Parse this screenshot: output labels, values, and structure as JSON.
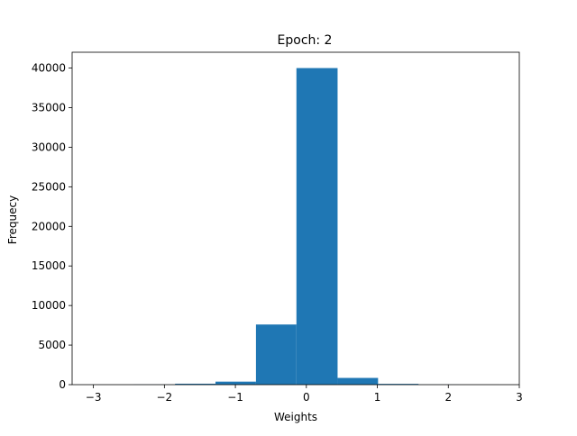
{
  "chart_data": {
    "type": "bar",
    "title": "Epoch: 2",
    "xlabel": "Weights",
    "ylabel": "Frequecy",
    "bar_color": "#1f77b4",
    "xlim": [
      -3.3,
      3.0
    ],
    "ylim": [
      0,
      42000
    ],
    "xticks": [
      {
        "value": -3,
        "label": "−3"
      },
      {
        "value": -2,
        "label": "−2"
      },
      {
        "value": -1,
        "label": "−1"
      },
      {
        "value": 0,
        "label": "0"
      },
      {
        "value": 1,
        "label": "1"
      },
      {
        "value": 2,
        "label": "2"
      },
      {
        "value": 3,
        "label": "3"
      }
    ],
    "yticks": [
      {
        "value": 0,
        "label": "0"
      },
      {
        "value": 5000,
        "label": "5000"
      },
      {
        "value": 10000,
        "label": "10000"
      },
      {
        "value": 15000,
        "label": "15000"
      },
      {
        "value": 20000,
        "label": "20000"
      },
      {
        "value": 25000,
        "label": "25000"
      },
      {
        "value": 30000,
        "label": "30000"
      },
      {
        "value": 35000,
        "label": "35000"
      },
      {
        "value": 40000,
        "label": "40000"
      }
    ],
    "bins": [
      {
        "x0": -3.0,
        "x1": -2.43,
        "value": 5
      },
      {
        "x0": -2.43,
        "x1": -1.85,
        "value": 20
      },
      {
        "x0": -1.85,
        "x1": -1.28,
        "value": 120
      },
      {
        "x0": -1.28,
        "x1": -0.71,
        "value": 380
      },
      {
        "x0": -0.71,
        "x1": -0.14,
        "value": 7600
      },
      {
        "x0": -0.14,
        "x1": 0.44,
        "value": 40000
      },
      {
        "x0": 0.44,
        "x1": 1.01,
        "value": 850
      },
      {
        "x0": 1.01,
        "x1": 1.58,
        "value": 100
      },
      {
        "x0": 1.58,
        "x1": 2.15,
        "value": 15
      },
      {
        "x0": 2.15,
        "x1": 2.72,
        "value": 5
      }
    ]
  }
}
